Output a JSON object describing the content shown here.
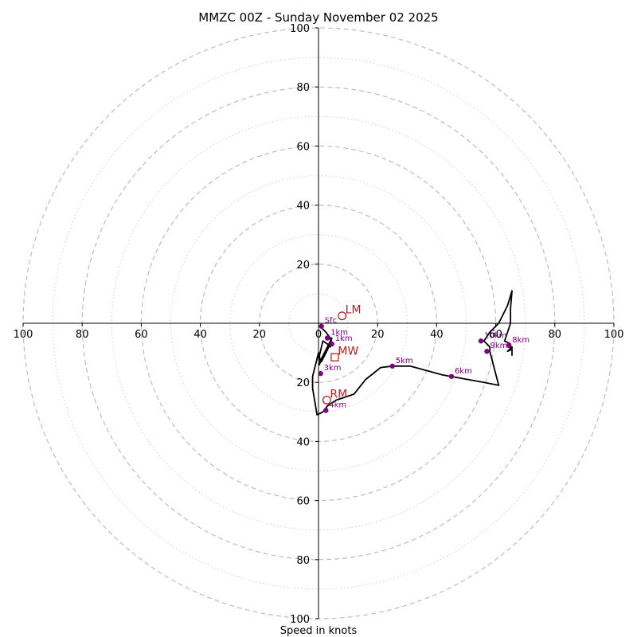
{
  "chart_data": {
    "type": "hodograph",
    "title": "MMZC 00Z - Sunday November 02 2025",
    "xlabel": "Speed in knots",
    "xlim": [
      -100,
      100
    ],
    "ylim": [
      -100,
      100
    ],
    "rings_major": [
      20,
      40,
      60,
      80,
      100
    ],
    "rings_minor": [
      10,
      30,
      50,
      70,
      90
    ],
    "x_tick_labels": [
      "100",
      "80",
      "60",
      "40",
      "20",
      "0",
      "20",
      "40",
      "60",
      "80",
      "100"
    ],
    "x_tick_values": [
      -100,
      -80,
      -60,
      -40,
      -20,
      0,
      20,
      40,
      60,
      80,
      100
    ],
    "y_tick_labels": [
      "100",
      "80",
      "60",
      "40",
      "20",
      "20",
      "40",
      "60",
      "80",
      "100"
    ],
    "y_tick_values": [
      100,
      80,
      60,
      40,
      20,
      -20,
      -40,
      -60,
      -80,
      -100
    ],
    "hodograph_line": {
      "color": "#000000",
      "u": [
        0.5,
        1,
        2.5,
        4,
        4.5,
        4,
        3,
        1.5,
        1,
        0.3,
        0.5,
        0.3,
        1,
        2,
        3.5,
        4.5,
        4,
        3,
        2,
        1,
        0.5,
        0,
        -0.5,
        -1,
        -1.5,
        -2,
        -2,
        -1.5,
        -0.5,
        1.5,
        3,
        6,
        12,
        16,
        21,
        25,
        31,
        42,
        56,
        61,
        58,
        58,
        56,
        58,
        61,
        61,
        64,
        65.5,
        65,
        65,
        63,
        65,
        65,
        64,
        65.5,
        65.5
      ],
      "v": [
        -1,
        -1.5,
        -3,
        -5,
        -7,
        -8,
        -7,
        -6,
        -8,
        -11,
        -13,
        -14,
        -12,
        -10,
        -7,
        -5,
        -7,
        -9,
        -11,
        -13,
        -12,
        -10,
        -12,
        -14,
        -16,
        -18,
        -22,
        -25,
        -31,
        -30,
        -28,
        -26,
        -24,
        -19,
        -15,
        -14.5,
        -14.5,
        -17.5,
        -20,
        -21,
        -9.5,
        -8,
        -6,
        -3,
        0,
        0,
        6,
        11,
        5,
        0,
        -6,
        -7,
        -9,
        -9.5,
        -8,
        -11
      ]
    },
    "altitude_markers": [
      {
        "label": "Sfc",
        "u": 1,
        "v": -1
      },
      {
        "label": "1km",
        "u": 3,
        "v": -5
      },
      {
        "label": "1km",
        "u": 4.5,
        "v": -7
      },
      {
        "label": "3km",
        "u": 0.7,
        "v": -17
      },
      {
        "label": "4km",
        "u": 2.5,
        "v": -29.5
      },
      {
        "label": "5km",
        "u": 25,
        "v": -14.5
      },
      {
        "label": "6km",
        "u": 45,
        "v": -18
      },
      {
        "label": "10km",
        "u": 55,
        "v": -6
      },
      {
        "label": "9km",
        "u": 57,
        "v": -9.5
      },
      {
        "label": "8km",
        "u": 64.5,
        "v": -7.5
      }
    ],
    "storm_motions": [
      {
        "label": "LM",
        "u": 8,
        "v": 2.5,
        "marker": "circle"
      },
      {
        "label": "MW",
        "u": 5.5,
        "v": -11.5,
        "marker": "square"
      },
      {
        "label": "RM",
        "u": 2.8,
        "v": -26,
        "marker": "circle"
      }
    ],
    "colors": {
      "line": "#000000",
      "altitude": "#800080",
      "storm_motion": "#b22222",
      "ring": "#bdbdbd"
    }
  }
}
